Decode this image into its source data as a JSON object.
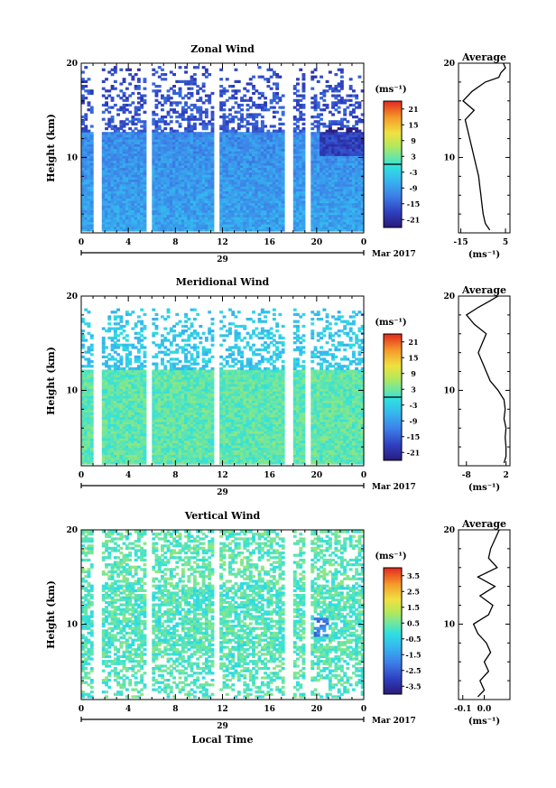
{
  "figure": {
    "date_label": "Mar 2017",
    "day_label": "29",
    "xlabel": "Local Time",
    "ylabel": "Height (km)",
    "unit": "(ms⁻¹)",
    "profile_title": "Average",
    "profile_xlabel": "(ms⁻¹)"
  },
  "chart_data": [
    {
      "type": "heatmap",
      "title": "Zonal Wind",
      "xlim": [
        0,
        24
      ],
      "ylim": [
        2,
        20
      ],
      "x_ticks": [
        "0",
        "4",
        "8",
        "12",
        "16",
        "20",
        "0"
      ],
      "y_ticks": [
        "10",
        "20"
      ],
      "colorbar": {
        "unit": "(ms⁻¹)",
        "range": [
          -24,
          24
        ],
        "tick_labels": [
          "21",
          "15",
          "9",
          "3",
          "-3",
          "-9",
          "-15",
          "-21"
        ],
        "contour_level": 0
      },
      "profile": {
        "title": "Average",
        "xlim": [
          -16,
          7
        ],
        "x_ticks": [
          "-15",
          "5"
        ],
        "points": [
          [
            -2,
            2.3
          ],
          [
            -4,
            3
          ],
          [
            -5,
            4
          ],
          [
            -5.5,
            5
          ],
          [
            -6,
            6
          ],
          [
            -6.5,
            7
          ],
          [
            -7,
            8
          ],
          [
            -8,
            9
          ],
          [
            -9,
            10
          ],
          [
            -10,
            11
          ],
          [
            -11,
            12
          ],
          [
            -12,
            13
          ],
          [
            -13,
            14
          ],
          [
            -9,
            15
          ],
          [
            -14,
            16
          ],
          [
            -10,
            17
          ],
          [
            -4,
            18
          ],
          [
            2,
            18.5
          ],
          [
            3,
            19
          ],
          [
            5,
            19.5
          ],
          [
            4,
            20
          ]
        ]
      },
      "gap_times": [
        1.4,
        5.8,
        11.5,
        17.6,
        19.2
      ],
      "heatmap_params": {
        "data_top": 19.5,
        "upper_cut": 12.5,
        "base": -9,
        "upper_base": -14,
        "trend": -0.25
      }
    },
    {
      "type": "heatmap",
      "title": "Meridional Wind",
      "xlim": [
        0,
        24
      ],
      "ylim": [
        2,
        20
      ],
      "x_ticks": [
        "0",
        "4",
        "8",
        "12",
        "16",
        "20",
        "0"
      ],
      "y_ticks": [
        "10",
        "20"
      ],
      "colorbar": {
        "unit": "(ms⁻¹)",
        "range": [
          -24,
          24
        ],
        "tick_labels": [
          "21",
          "15",
          "9",
          "3",
          "-3",
          "-9",
          "-15",
          "-21"
        ],
        "contour_level": 0
      },
      "profile": {
        "title": "Average",
        "xlim": [
          -10,
          3
        ],
        "x_ticks": [
          "-8",
          "2"
        ],
        "points": [
          [
            1.5,
            2.3
          ],
          [
            2,
            3
          ],
          [
            2,
            4
          ],
          [
            1.8,
            5
          ],
          [
            2,
            6
          ],
          [
            1.5,
            7
          ],
          [
            1.8,
            8
          ],
          [
            1.5,
            9
          ],
          [
            0,
            10
          ],
          [
            -2,
            11
          ],
          [
            -3,
            12
          ],
          [
            -4,
            13
          ],
          [
            -5,
            14
          ],
          [
            -4,
            15
          ],
          [
            -3,
            16
          ],
          [
            -6,
            17
          ],
          [
            -8,
            18
          ],
          [
            -5,
            18.8
          ],
          [
            -2,
            19.5
          ],
          [
            0,
            20
          ]
        ]
      },
      "gap_times": [
        1.4,
        5.8,
        11.5,
        17.6,
        19.2
      ],
      "heatmap_params": {
        "data_top": 18.5,
        "upper_cut": 12,
        "base": 2,
        "upper_base": -4,
        "trend": 0
      }
    },
    {
      "type": "heatmap",
      "title": "Vertical Wind",
      "xlim": [
        0,
        24
      ],
      "ylim": [
        2,
        20
      ],
      "x_ticks": [
        "0",
        "4",
        "8",
        "12",
        "16",
        "20",
        "0"
      ],
      "y_ticks": [
        "10",
        "20"
      ],
      "colorbar": {
        "unit": "(ms⁻¹)",
        "range": [
          -4,
          4
        ],
        "tick_labels": [
          "3.5",
          "2.5",
          "1.5",
          "0.5",
          "-0.5",
          "-1.5",
          "-2.5",
          "-3.5"
        ],
        "contour_level": null
      },
      "profile": {
        "title": "Average",
        "xlim": [
          -0.12,
          0.12
        ],
        "x_ticks": [
          "-0.1",
          "0.0"
        ],
        "points": [
          [
            -0.03,
            2.3
          ],
          [
            0.0,
            3
          ],
          [
            -0.02,
            4
          ],
          [
            0.02,
            5
          ],
          [
            0.0,
            6
          ],
          [
            0.03,
            7
          ],
          [
            0.01,
            8
          ],
          [
            -0.03,
            9
          ],
          [
            -0.05,
            10
          ],
          [
            0.02,
            11
          ],
          [
            0.04,
            12
          ],
          [
            -0.02,
            13
          ],
          [
            0.05,
            14
          ],
          [
            -0.03,
            15
          ],
          [
            0.06,
            16
          ],
          [
            0.02,
            17
          ],
          [
            0.03,
            18
          ],
          [
            0.05,
            19
          ],
          [
            0.07,
            20
          ]
        ]
      },
      "gap_times": [
        1.4,
        5.8,
        11.5,
        17.6,
        19.2
      ],
      "heatmap_params": {
        "data_top": 19.8,
        "upper_cut": 14,
        "base": 0.2,
        "upper_base": 0.3,
        "trend": 0
      }
    }
  ]
}
